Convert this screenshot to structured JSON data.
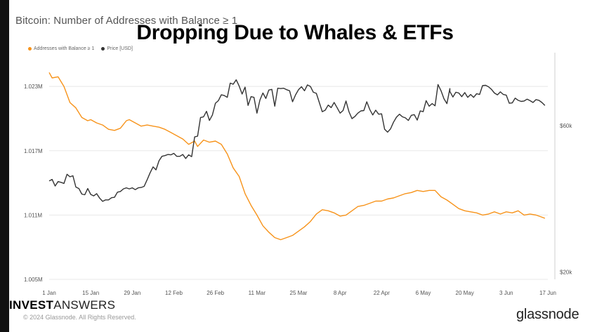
{
  "header": {
    "subtitle": "Bitcoin: Number of Addresses with Balance ≥ 1",
    "overlay_title": "Dropping Due to Whales & ETFs"
  },
  "legend": {
    "addresses_label": "Addresses with Balance ≥ 1",
    "price_label": "Price [USD]"
  },
  "footer": {
    "brand_bold": "INVEST",
    "brand_regular": "ANSWERS",
    "copyright": "© 2024 Glassnode. All Rights Reserved.",
    "glassnode": "glassnode"
  },
  "colors": {
    "addresses": "#f7931a",
    "price": "#333333",
    "grid": "#e8e8e8",
    "tick_text": "#555555"
  },
  "chart_data": {
    "type": "line",
    "x_tick_labels": [
      "1 Jan",
      "15 Jan",
      "29 Jan",
      "12 Feb",
      "26 Feb",
      "11 Mar",
      "25 Mar",
      "8 Apr",
      "22 Apr",
      "6 May",
      "20 May",
      "3 Jun",
      "17 Jun"
    ],
    "x_range_days": [
      0,
      168
    ],
    "y_left": {
      "ticks": [
        "1.005M",
        "1.011M",
        "1.017M",
        "1.023M"
      ],
      "tick_values": [
        1005000,
        1011000,
        1017000,
        1023000
      ],
      "ylim": [
        1005000,
        1025500
      ]
    },
    "y_right": {
      "ticks": [
        "$20k",
        "$60k"
      ],
      "tick_values": [
        20000,
        60000
      ],
      "ylim": [
        18000,
        78000
      ]
    },
    "series": [
      {
        "name": "Addresses with Balance ≥ 1",
        "axis": "left",
        "x": [
          0,
          1,
          3,
          5,
          7,
          9,
          11,
          13,
          14,
          16,
          18,
          20,
          22,
          24,
          26,
          27,
          29,
          31,
          33,
          35,
          37,
          39,
          41,
          43,
          45,
          47,
          49,
          50,
          52,
          54,
          56,
          58,
          60,
          62,
          64,
          66,
          68,
          70,
          72,
          74,
          76,
          78,
          80,
          82,
          84,
          86,
          88,
          90,
          92,
          94,
          96,
          98,
          100,
          102,
          104,
          106,
          108,
          110,
          112,
          114,
          116,
          118,
          120,
          122,
          124,
          126,
          128,
          130,
          132,
          134,
          136,
          138,
          140,
          142,
          144,
          146,
          148,
          150,
          152,
          154,
          156,
          158,
          160,
          162,
          164,
          166,
          167
        ],
        "values": [
          1024300,
          1023800,
          1023900,
          1023000,
          1021500,
          1021000,
          1020100,
          1019800,
          1019900,
          1019600,
          1019400,
          1019000,
          1018900,
          1019100,
          1019800,
          1019900,
          1019600,
          1019300,
          1019400,
          1019300,
          1019200,
          1019000,
          1018700,
          1018400,
          1018100,
          1017600,
          1017900,
          1017400,
          1018000,
          1017800,
          1017900,
          1017600,
          1016700,
          1015400,
          1014600,
          1013000,
          1011900,
          1011000,
          1010000,
          1009400,
          1008900,
          1008700,
          1008900,
          1009100,
          1009500,
          1009900,
          1010400,
          1011100,
          1011500,
          1011400,
          1011200,
          1010900,
          1011000,
          1011400,
          1011800,
          1011900,
          1012100,
          1012300,
          1012300,
          1012500,
          1012600,
          1012800,
          1013000,
          1013100,
          1013300,
          1013200,
          1013300,
          1013300,
          1012700,
          1012400,
          1012000,
          1011600,
          1011400,
          1011300,
          1011200,
          1011000,
          1011100,
          1011300,
          1011100,
          1011300,
          1011200,
          1011400,
          1011000,
          1011100,
          1011000,
          1010800,
          1010700
        ]
      },
      {
        "name": "Price [USD]",
        "axis": "right",
        "x": [
          0,
          1,
          2,
          3,
          4,
          5,
          6,
          7,
          8,
          9,
          10,
          11,
          12,
          13,
          14,
          15,
          16,
          17,
          18,
          19,
          20,
          21,
          22,
          23,
          24,
          25,
          26,
          27,
          28,
          29,
          30,
          31,
          32,
          33,
          34,
          35,
          36,
          37,
          38,
          39,
          40,
          41,
          42,
          43,
          44,
          45,
          46,
          47,
          48,
          49,
          50,
          51,
          52,
          53,
          54,
          55,
          56,
          57,
          58,
          59,
          60,
          61,
          62,
          63,
          64,
          65,
          66,
          67,
          68,
          69,
          70,
          71,
          72,
          73,
          74,
          75,
          76,
          77,
          78,
          79,
          80,
          81,
          82,
          83,
          84,
          85,
          86,
          87,
          88,
          89,
          90,
          91,
          92,
          93,
          94,
          95,
          96,
          97,
          98,
          99,
          100,
          101,
          102,
          103,
          104,
          105,
          106,
          107,
          108,
          109,
          110,
          111,
          112,
          113,
          114,
          115,
          116,
          117,
          118,
          119,
          120,
          121,
          122,
          123,
          124,
          125,
          126,
          127,
          128,
          129,
          130,
          131,
          132,
          133,
          134,
          135,
          135,
          136,
          137,
          138,
          139,
          140,
          141,
          142,
          143,
          144,
          145,
          146,
          147,
          148,
          149,
          150,
          151,
          152,
          153,
          154,
          155,
          156,
          157,
          158,
          159,
          160,
          161,
          162,
          163,
          164,
          165,
          166,
          167
        ],
        "values": [
          44900,
          45300,
          43500,
          44700,
          44500,
          44200,
          46700,
          46000,
          46300,
          43200,
          42800,
          41300,
          41100,
          42800,
          41200,
          40800,
          41400,
          40200,
          39300,
          39700,
          39700,
          40300,
          40400,
          41800,
          42000,
          42700,
          43000,
          42700,
          43000,
          42500,
          43000,
          43100,
          43400,
          45200,
          47100,
          48700,
          47900,
          50400,
          51600,
          51800,
          52100,
          52000,
          52400,
          51600,
          51600,
          52100,
          51000,
          52000,
          51500,
          56900,
          57100,
          62200,
          62400,
          63900,
          61400,
          62900,
          66100,
          66800,
          68400,
          68200,
          67700,
          71600,
          71300,
          72500,
          70800,
          68600,
          70500,
          65500,
          67900,
          67700,
          63400,
          67000,
          68900,
          67400,
          69700,
          69900,
          65300,
          70200,
          70100,
          70200,
          69800,
          69500,
          66500,
          68400,
          69800,
          70600,
          69500,
          71100,
          70700,
          69100,
          68800,
          66300,
          63800,
          64200,
          65600,
          64900,
          66300,
          64900,
          63400,
          64100,
          66700,
          63800,
          61900,
          62500,
          63400,
          64000,
          64100,
          66500,
          64400,
          62900,
          64200,
          63100,
          63200,
          59000,
          58200,
          59100,
          60900,
          62300,
          63100,
          62400,
          62100,
          61400,
          62800,
          63000,
          61500,
          64000,
          63800,
          66800,
          65300,
          66000,
          65400,
          71200,
          69500,
          67300,
          66000,
          70100,
          69300,
          67800,
          69100,
          68900,
          67900,
          69000,
          67700,
          68500,
          67700,
          68700,
          68500,
          70900,
          71000,
          70600,
          69900,
          68900,
          68400,
          69200,
          68500,
          68300,
          66100,
          66200,
          67500,
          66900,
          66600,
          66700,
          67200,
          66800,
          66300,
          67100,
          66900,
          66300,
          65500
        ],
        "note": "x positions of each series are days since 1 Jan (0 = 1 Jan)"
      }
    ],
    "grid": {
      "horizontal": true,
      "vertical": false
    },
    "legend_placement": "top-left"
  }
}
